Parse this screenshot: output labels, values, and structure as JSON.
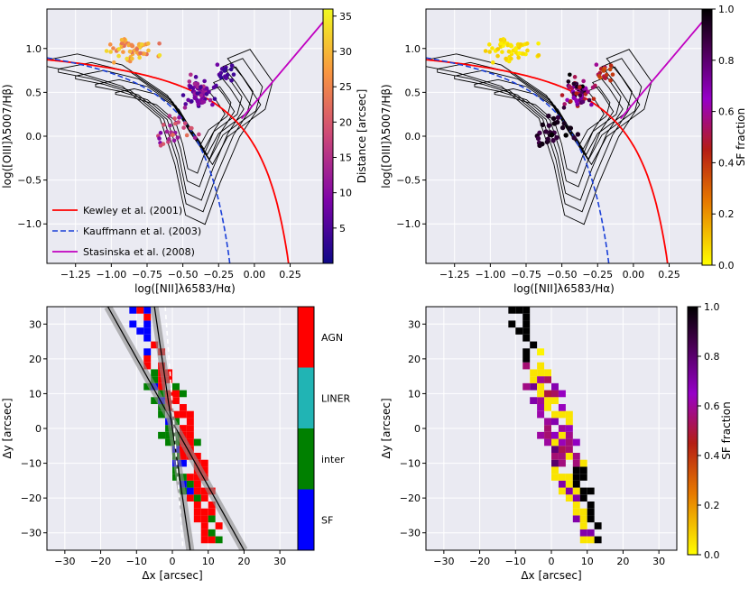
{
  "figure": "BPT diagnostic diagrams and spatially resolved classification maps",
  "chart_data": [
    {
      "id": "bpt_distance",
      "type": "scatter",
      "xlabel": "log([NII]λ6583/Hα)",
      "ylabel": "log([OIII]λ5007/Hβ)",
      "xlim": [
        -1.45,
        0.48
      ],
      "ylim": [
        -1.45,
        1.45
      ],
      "xticks": [
        -1.25,
        -1.0,
        -0.75,
        -0.5,
        -0.25,
        0.0,
        0.25
      ],
      "xtick_labels": [
        "−1.25",
        "−1.00",
        "−0.75",
        "−0.50",
        "−0.25",
        "0.00",
        "0.25"
      ],
      "yticks": [
        -1.0,
        -0.5,
        0.0,
        0.5,
        1.0
      ],
      "ytick_labels": [
        "−1.0",
        "−0.5",
        "0.0",
        "0.5",
        "1.0"
      ],
      "colorbar": {
        "label": "Distance [arcsec]",
        "cmap": "plasma",
        "range": [
          0,
          36
        ],
        "ticks": [
          5,
          10,
          15,
          20,
          25,
          30,
          35
        ],
        "tick_labels": [
          "5",
          "10",
          "15",
          "20",
          "25",
          "30",
          "35"
        ]
      },
      "legend": {
        "position": "lower-left",
        "entries": [
          "Kewley et al. (2001)",
          "Kauffmann et al. (2003)",
          "Stasinska et al. (2008)"
        ]
      }
    },
    {
      "id": "bpt_sf_fraction",
      "type": "scatter",
      "xlabel": "log([NII]λ6583/Hα)",
      "ylabel": "log([OIII]λ5007/Hβ)",
      "xlim": [
        -1.45,
        0.48
      ],
      "ylim": [
        -1.45,
        1.45
      ],
      "xticks": [
        -1.25,
        -1.0,
        -0.75,
        -0.5,
        -0.25,
        0.0,
        0.25
      ],
      "xtick_labels": [
        "−1.25",
        "−1.00",
        "−0.75",
        "−0.50",
        "−0.25",
        "0.00",
        "0.25"
      ],
      "yticks": [
        -1.0,
        -0.5,
        0.0,
        0.5,
        1.0
      ],
      "ytick_labels": [
        "−1.0",
        "−0.5",
        "0.0",
        "0.5",
        "1.0"
      ],
      "colorbar": {
        "label": "SF fraction",
        "cmap": "gnuplot",
        "range": [
          0,
          1
        ],
        "ticks": [
          0.0,
          0.2,
          0.4,
          0.6,
          0.8,
          1.0
        ],
        "tick_labels": [
          "0.0",
          "0.2",
          "0.4",
          "0.6",
          "0.8",
          "1.0"
        ]
      }
    },
    {
      "id": "map_class",
      "type": "heatmap",
      "xlabel": "Δx [arcsec]",
      "ylabel": "Δy [arcsec]",
      "xlim": [
        -35,
        35
      ],
      "ylim": [
        -35,
        35
      ],
      "xticks": [
        -30,
        -20,
        -10,
        0,
        10,
        20,
        30
      ],
      "xtick_labels": [
        "−30",
        "−20",
        "−10",
        "0",
        "10",
        "20",
        "30"
      ],
      "yticks": [
        -30,
        -20,
        -10,
        0,
        10,
        20,
        30
      ],
      "ytick_labels": [
        "−30",
        "−20",
        "−10",
        "0",
        "10",
        "20",
        "30"
      ],
      "categories": [
        "SF",
        "inter",
        "LINER",
        "AGN"
      ],
      "category_colors": [
        "#0000ff",
        "#008000",
        "#21b4b4",
        "#ff0000"
      ]
    },
    {
      "id": "map_sf_fraction",
      "type": "heatmap",
      "xlabel": "Δx [arcsec]",
      "ylabel": "Δy [arcsec]",
      "xlim": [
        -35,
        35
      ],
      "ylim": [
        -35,
        35
      ],
      "xticks": [
        -30,
        -20,
        -10,
        0,
        10,
        20,
        30
      ],
      "xtick_labels": [
        "−30",
        "−20",
        "−10",
        "0",
        "10",
        "20",
        "30"
      ],
      "yticks": [
        -30,
        -20,
        -10,
        0,
        10,
        20,
        30
      ],
      "ytick_labels": [
        "−30",
        "−20",
        "−10",
        "0",
        "10",
        "20",
        "30"
      ],
      "colorbar": {
        "label": "SF fraction",
        "cmap": "gnuplot",
        "range": [
          0,
          1
        ],
        "ticks": [
          0.0,
          0.2,
          0.4,
          0.6,
          0.8,
          1.0
        ],
        "tick_labels": [
          "0.0",
          "0.2",
          "0.4",
          "0.6",
          "0.8",
          "1.0"
        ]
      }
    }
  ]
}
